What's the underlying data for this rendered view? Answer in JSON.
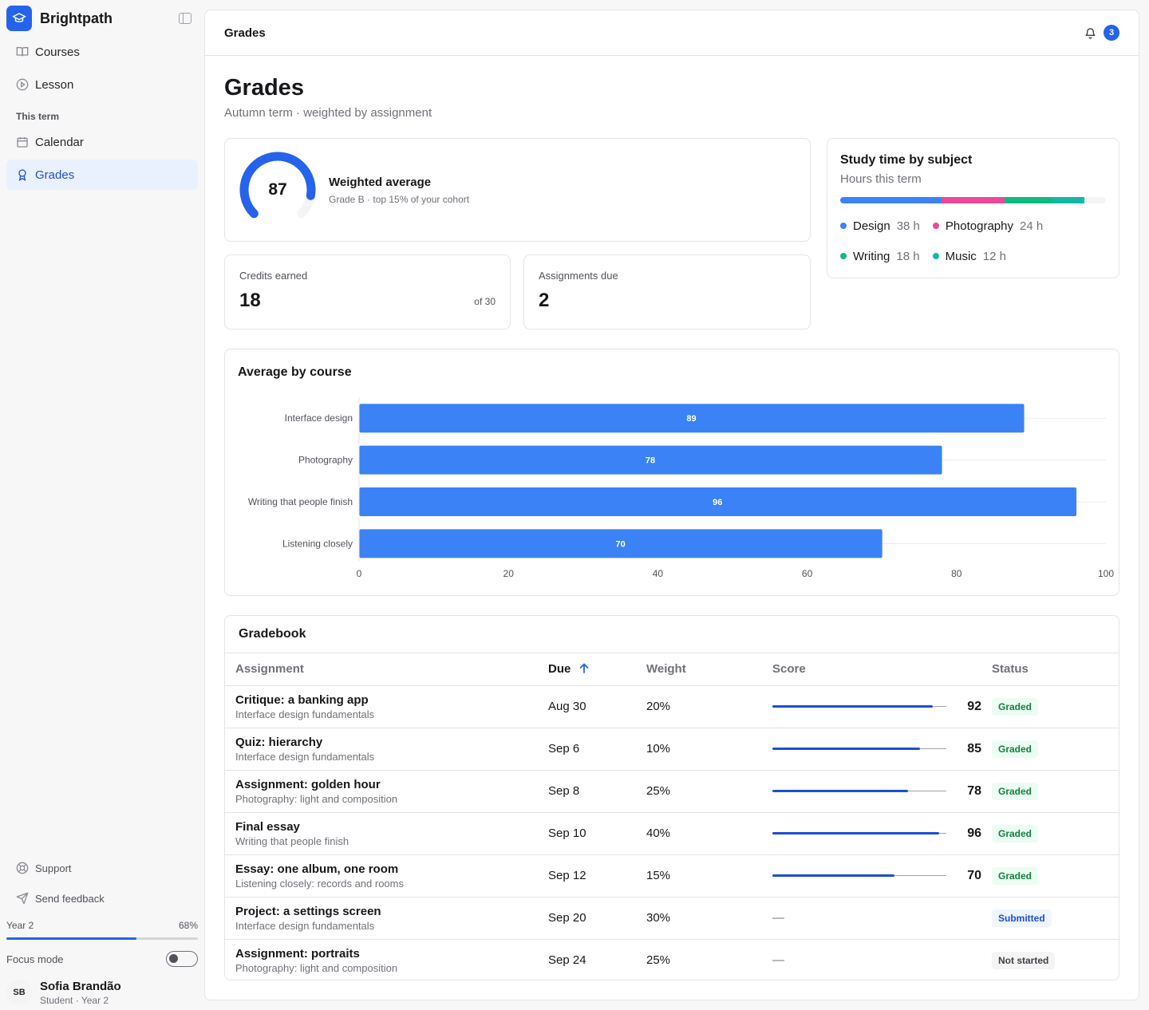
{
  "brand": {
    "name": "Brightpath"
  },
  "nav": {
    "items": [
      {
        "label": "Courses"
      },
      {
        "label": "Lesson"
      }
    ],
    "section_label": "This term",
    "term_items": [
      {
        "label": "Calendar"
      },
      {
        "label": "Grades"
      }
    ]
  },
  "sidebar_bottom": {
    "support": "Support",
    "feedback": "Send feedback",
    "year_label": "Year 2",
    "year_progress_label": "68%",
    "year_progress": 0.68,
    "focus_label": "Focus mode",
    "focus_on": false,
    "user": {
      "initials": "SB",
      "name": "Sofia Brandão",
      "role": "Student · Year 2"
    }
  },
  "topbar": {
    "title": "Grades",
    "notification_count": "3"
  },
  "page": {
    "title": "Grades",
    "subtitle": "Autumn term · weighted by assignment"
  },
  "average": {
    "value": "87",
    "title": "Weighted average",
    "subtitle": "Grade B · top 15% of your cohort",
    "fraction": 0.87
  },
  "credits": {
    "label": "Credits earned",
    "value": "18",
    "of": "of 30"
  },
  "assignments_due": {
    "label": "Assignments due",
    "value": "2"
  },
  "study": {
    "title": "Study time by subject",
    "subtitle": "Hours this term",
    "total_scale": 100,
    "subjects": [
      {
        "name": "Design",
        "hours": "38 h",
        "value": 38,
        "color": "#3b82f6"
      },
      {
        "name": "Photography",
        "hours": "24 h",
        "value": 24,
        "color": "#ec4899"
      },
      {
        "name": "Writing",
        "hours": "18 h",
        "value": 18,
        "color": "#10b981"
      },
      {
        "name": "Music",
        "hours": "12 h",
        "value": 12,
        "color": "#14b8a6"
      }
    ]
  },
  "chart_data": {
    "type": "bar",
    "orientation": "horizontal",
    "title": "Average by course",
    "categories": [
      "Interface design",
      "Photography",
      "Writing that people finish",
      "Listening closely"
    ],
    "values": [
      89,
      78,
      96,
      70
    ],
    "xlim": [
      0,
      100
    ],
    "xticks": [
      0,
      20,
      40,
      60,
      80,
      100
    ],
    "color": "#3b82f6",
    "grid": true
  },
  "gradebook": {
    "title": "Gradebook",
    "columns": {
      "assignment": "Assignment",
      "due": "Due",
      "weight": "Weight",
      "score": "Score",
      "status": "Status"
    },
    "rows": [
      {
        "title": "Critique: a banking app",
        "course": "Interface design fundamentals",
        "due": "Aug 30",
        "weight": "20%",
        "score": "92",
        "score_value": 92,
        "status": "Graded",
        "status_kind": "graded"
      },
      {
        "title": "Quiz: hierarchy",
        "course": "Interface design fundamentals",
        "due": "Sep 6",
        "weight": "10%",
        "score": "85",
        "score_value": 85,
        "status": "Graded",
        "status_kind": "graded"
      },
      {
        "title": "Assignment: golden hour",
        "course": "Photography: light and composition",
        "due": "Sep 8",
        "weight": "25%",
        "score": "78",
        "score_value": 78,
        "status": "Graded",
        "status_kind": "graded"
      },
      {
        "title": "Final essay",
        "course": "Writing that people finish",
        "due": "Sep 10",
        "weight": "40%",
        "score": "96",
        "score_value": 96,
        "status": "Graded",
        "status_kind": "graded"
      },
      {
        "title": "Essay: one album, one room",
        "course": "Listening closely: records and rooms",
        "due": "Sep 12",
        "weight": "15%",
        "score": "70",
        "score_value": 70,
        "status": "Graded",
        "status_kind": "graded"
      },
      {
        "title": "Project: a settings screen",
        "course": "Interface design fundamentals",
        "due": "Sep 20",
        "weight": "30%",
        "score": "—",
        "score_value": null,
        "status": "Submitted",
        "status_kind": "submitted"
      },
      {
        "title": "Assignment: portraits",
        "course": "Photography: light and composition",
        "due": "Sep 24",
        "weight": "25%",
        "score": "—",
        "score_value": null,
        "status": "Not started",
        "status_kind": "not-started"
      }
    ]
  }
}
